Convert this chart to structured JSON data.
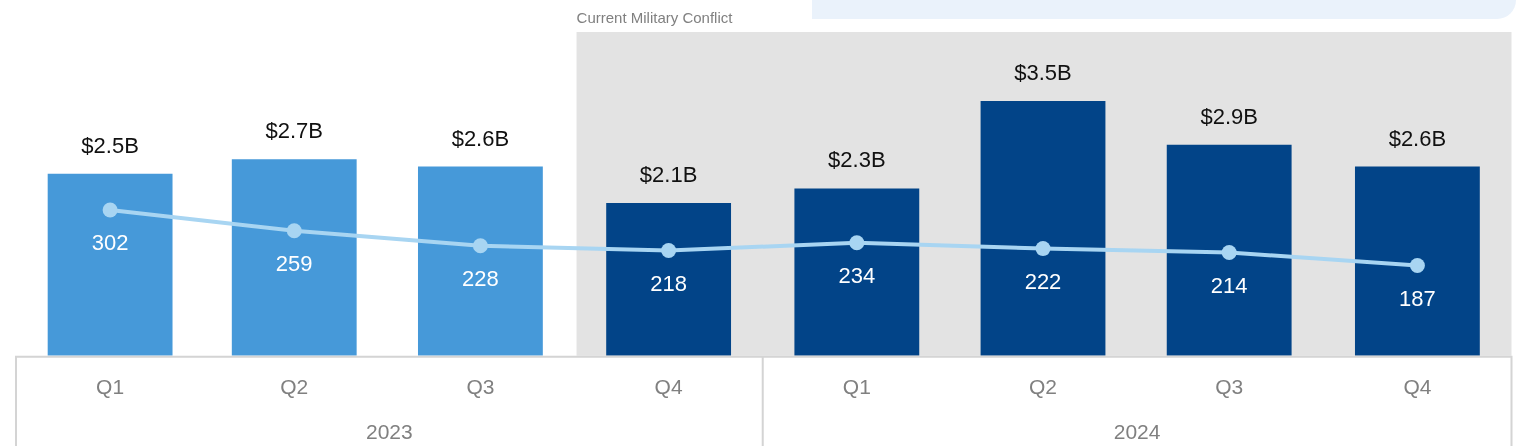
{
  "chart_data": {
    "type": "bar",
    "x": [
      "2023-01",
      "2023-04",
      "2023-07",
      "2023-10",
      "2024-01",
      "2024-04",
      "2024-07",
      "2024-10"
    ],
    "xlim": [
      "2022-11-16",
      "2024-11-16"
    ],
    "xticks": [
      {
        "value": "2023-01",
        "label": "Q1"
      },
      {
        "value": "2023-04",
        "label": "Q2"
      },
      {
        "value": "2023-07",
        "label": "Q3"
      },
      {
        "value": "2023-10",
        "label": "Q4"
      },
      {
        "value": "2024-01",
        "label": "Q1"
      },
      {
        "value": "2024-04",
        "label": "Q2"
      },
      {
        "value": "2024-07",
        "label": "Q3"
      },
      {
        "value": "2024-10",
        "label": "Q4"
      }
    ],
    "series": [
      {
        "colors": [
          "#4699d9",
          "#4699d9",
          "#4699d9",
          "#024488",
          "#024488",
          "#024488",
          "#024488",
          "#024488"
        ],
        "values": [
          2.5,
          2.7,
          2.6,
          2.1,
          2.3,
          3.5,
          2.9,
          2.6
        ],
        "value_labels": [
          "$2.5B",
          "$2.7B",
          "$2.6B",
          "$2.1B",
          "$2.3B",
          "$3.5B",
          "$2.9B",
          "$2.6B"
        ]
      },
      {
        "type": "line",
        "axis": "y2",
        "color": "#a8d5f2",
        "values": [
          302,
          259,
          228,
          218,
          234,
          222,
          214,
          187
        ],
        "value_labels": [
          "302",
          "259",
          "228",
          "218",
          "234",
          "222",
          "214",
          "187"
        ]
      }
    ],
    "marker": "circle",
    "bands": [
      {
        "axis": "x",
        "from": "2023-08-17",
        "to": "2024-11-16",
        "label": "Current Military Conflict",
        "color": "#e3e3e3"
      }
    ],
    "annotations": [
      "2023",
      "2024"
    ]
  }
}
